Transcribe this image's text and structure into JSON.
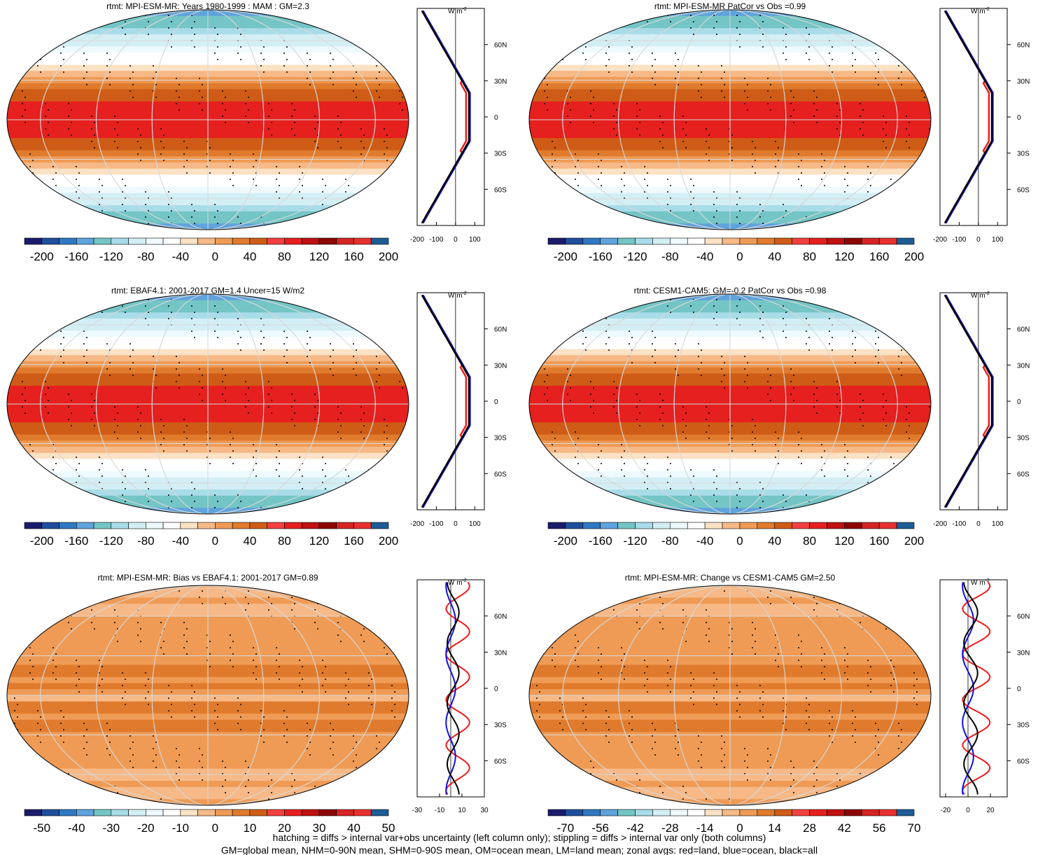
{
  "chart_data": [
    {
      "type": "map",
      "panel": "a",
      "title": "rtmt: MPI-ESM-MR: Years 1980-1999 : MAM : GM=2.3",
      "field": "rtmt",
      "units": "W m-2",
      "global_mean": 2.3,
      "colorbar": {
        "ticks": [
          "-200",
          "-160",
          "-120",
          "-80",
          "-40",
          "0",
          "40",
          "80",
          "120",
          "160",
          "200"
        ],
        "range": [
          -200,
          200
        ],
        "n_colors": 21,
        "palette": "div"
      },
      "zonal": {
        "x_ticks": [
          "-200",
          "-100",
          "0",
          "100"
        ],
        "xlim": [
          -200,
          150
        ],
        "lat_ticks": [
          "60N",
          "30N",
          "0",
          "30S",
          "60S"
        ],
        "units_label": "W m",
        "units_sup": "-2"
      }
    },
    {
      "type": "map",
      "panel": "b",
      "title": "rtmt: MPI-ESM-MR PatCor vs Obs =0.99",
      "field": "rtmt",
      "units": "W m-2",
      "pattern_correlation": 0.99,
      "colorbar": {
        "ticks": [
          "-200",
          "-160",
          "-120",
          "-80",
          "-40",
          "0",
          "40",
          "80",
          "120",
          "160",
          "200"
        ],
        "range": [
          -200,
          200
        ],
        "n_colors": 21,
        "palette": "div"
      },
      "zonal": {
        "x_ticks": [
          "-200",
          "-100",
          "0",
          "100"
        ],
        "xlim": [
          -200,
          150
        ],
        "lat_ticks": [
          "60N",
          "30N",
          "0",
          "30S",
          "60S"
        ],
        "units_label": "W m",
        "units_sup": "-2"
      }
    },
    {
      "type": "map",
      "panel": "c",
      "title": "rtmt: EBAF4.1: 2001-2017 GM=1.4 Uncer=15 W/m2",
      "field": "rtmt",
      "units": "W m-2",
      "global_mean": 1.4,
      "colorbar": {
        "ticks": [
          "-200",
          "-160",
          "-120",
          "-80",
          "-40",
          "0",
          "40",
          "80",
          "120",
          "160",
          "200"
        ],
        "range": [
          -200,
          200
        ],
        "n_colors": 21,
        "palette": "div"
      },
      "zonal": {
        "x_ticks": [
          "-200",
          "-100",
          "0",
          "100"
        ],
        "xlim": [
          -200,
          150
        ],
        "lat_ticks": [
          "60N",
          "30N",
          "0",
          "30S",
          "60S"
        ],
        "units_label": "W m",
        "units_sup": "-2"
      }
    },
    {
      "type": "map",
      "panel": "d",
      "title": "rtmt: CESM1-CAM5: GM=-0.2 PatCor vs Obs =0.98",
      "field": "rtmt",
      "units": "W m-2",
      "global_mean": -0.2,
      "pattern_correlation": 0.98,
      "colorbar": {
        "ticks": [
          "-200",
          "-160",
          "-120",
          "-80",
          "-40",
          "0",
          "40",
          "80",
          "120",
          "160",
          "200"
        ],
        "range": [
          -200,
          200
        ],
        "n_colors": 21,
        "palette": "div"
      },
      "zonal": {
        "x_ticks": [
          "-200",
          "-100",
          "0",
          "100"
        ],
        "xlim": [
          -200,
          150
        ],
        "lat_ticks": [
          "60N",
          "30N",
          "0",
          "30S",
          "60S"
        ],
        "units_label": "W m",
        "units_sup": "-2"
      }
    },
    {
      "type": "map",
      "panel": "e",
      "title": "rtmt: MPI-ESM-MR: Bias vs EBAF4.1: 2001-2017 GM=0.89",
      "field": "rtmt",
      "units": "W m-2",
      "global_mean": 0.89,
      "colorbar": {
        "ticks": [
          "-50",
          "-40",
          "-30",
          "-20",
          "-10",
          "0",
          "10",
          "20",
          "30",
          "40",
          "50"
        ],
        "range": [
          -50,
          50
        ],
        "n_colors": 21,
        "palette": "div"
      },
      "zonal": {
        "x_ticks": [
          "-30",
          "-10",
          "10",
          "30"
        ],
        "xlim": [
          -30,
          30
        ],
        "lat_ticks": [
          "60N",
          "30N",
          "0",
          "30S",
          "60S"
        ],
        "units_label": "W m",
        "units_sup": "-2"
      }
    },
    {
      "type": "map",
      "panel": "f",
      "title": "rtmt: MPI-ESM-MR: Change vs CESM1-CAM5 GM=2.50",
      "field": "rtmt",
      "units": "W m-2",
      "global_mean": 2.5,
      "colorbar": {
        "ticks": [
          "-70",
          "-56",
          "-42",
          "-28",
          "-14",
          "0",
          "14",
          "28",
          "42",
          "56",
          "70"
        ],
        "range": [
          -70,
          70
        ],
        "n_colors": 21,
        "palette": "div"
      },
      "zonal": {
        "x_ticks": [
          "-20",
          "0",
          "20"
        ],
        "xlim": [
          -25,
          35
        ],
        "lat_ticks": [
          "60N",
          "30N",
          "0",
          "30S",
          "60S"
        ],
        "units_label": "W m",
        "units_sup": "-2"
      }
    }
  ],
  "palettes": {
    "div": [
      "#1b1b6b",
      "#1f4e9c",
      "#2f78c2",
      "#5fa3dc",
      "#74c5c5",
      "#a8dce8",
      "#d3eff5",
      "#eefaff",
      "#ffffff",
      "#fbe2c4",
      "#f6b987",
      "#ef9b55",
      "#e07b2d",
      "#cf5c16",
      "#f24040",
      "#e5201f",
      "#c01010",
      "#8c0505",
      "#d42424",
      "#e83030",
      "#1e5c96"
    ]
  },
  "footnote": {
    "line1": "hatching = diffs > internal var+obs uncertainty (left column only); stippling = diffs > internal var only (both columns)",
    "line2": "GM=global mean, NHM=0-90N mean, SHM=0-90S mean, OM=ocean mean, LM=land mean; zonal avgs: red=land, blue=ocean, black=all"
  },
  "legend": {
    "land": "#ee1c1c",
    "ocean": "#1010e0",
    "all": "#000000"
  }
}
